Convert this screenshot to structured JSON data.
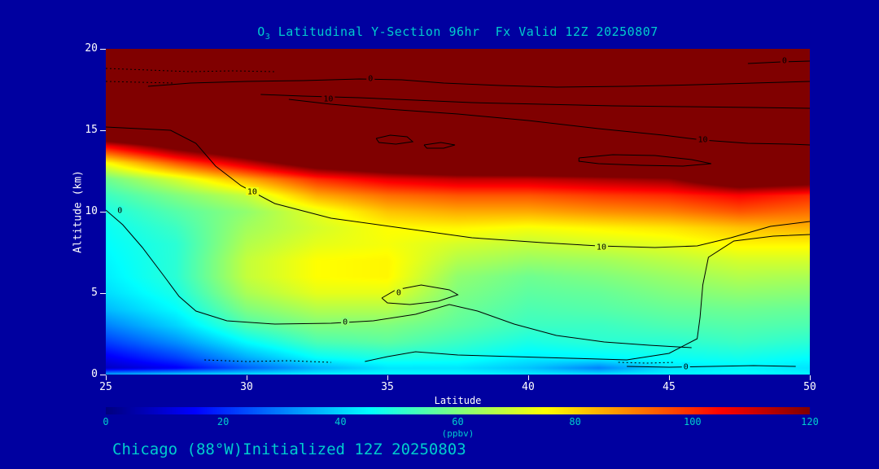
{
  "title": {
    "prefix": "O",
    "sub": "3",
    "rest": " Latitudinal Y-Section 96hr  Fx Valid 12Z 20250807"
  },
  "caption": {
    "text": "Chicago (88°W)Initialized 12Z 20250803"
  },
  "axes": {
    "x": {
      "label": "Latitude",
      "min": 25,
      "max": 50,
      "ticks": [
        25,
        30,
        35,
        40,
        45,
        50
      ]
    },
    "y": {
      "label": "Altitude (km)",
      "min": 0,
      "max": 20,
      "ticks": [
        0,
        5,
        10,
        15,
        20
      ]
    }
  },
  "colorbar": {
    "units": "(ppbv)",
    "min": 0,
    "max": 120,
    "ticks": [
      0,
      20,
      40,
      60,
      80,
      100,
      120
    ],
    "colormap": "jet"
  },
  "colors": {
    "background": "#0000A0",
    "title_text": "#00CDCD",
    "axis_text": "#FFFFFF",
    "caption_text": "#00CDCD",
    "contour_line": "#000000"
  },
  "chart_data": {
    "type": "heatmap",
    "title": "O3 Latitudinal Y-Section 96hr Fx Valid 12Z 20250807",
    "xlabel": "Latitude",
    "ylabel": "Altitude (km)",
    "value_units": "ppbv",
    "xlim": [
      25,
      50
    ],
    "ylim": [
      0,
      20
    ],
    "color_scale": {
      "type": "jet",
      "min": 0,
      "max": 120,
      "over": "dark-red"
    },
    "x_lats": [
      25,
      27.5,
      30,
      32.5,
      35,
      37.5,
      40,
      42.5,
      45,
      47.5,
      50
    ],
    "y_alts": [
      0,
      0.4,
      1,
      2,
      3,
      4,
      5,
      6,
      7,
      8,
      9,
      10,
      11,
      12,
      13,
      14,
      15,
      16,
      20
    ],
    "values_ppbv": [
      [
        36,
        40,
        42,
        44,
        45,
        45,
        43,
        42,
        44,
        46,
        44
      ],
      [
        8,
        14,
        26,
        36,
        42,
        42,
        38,
        30,
        42,
        44,
        42
      ],
      [
        13,
        22,
        35,
        45,
        48,
        47,
        43,
        44,
        46,
        47,
        45
      ],
      [
        22,
        32,
        45,
        54,
        56,
        52,
        48,
        50,
        50,
        52,
        50
      ],
      [
        30,
        40,
        54,
        60,
        60,
        56,
        52,
        52,
        54,
        55,
        54
      ],
      [
        37,
        45,
        60,
        66,
        66,
        58,
        54,
        55,
        57,
        58,
        57
      ],
      [
        41,
        48,
        65,
        72,
        72,
        60,
        56,
        57,
        60,
        62,
        61
      ],
      [
        43,
        50,
        68,
        75,
        76,
        62,
        58,
        60,
        63,
        66,
        65
      ],
      [
        44,
        50,
        68,
        75,
        76,
        66,
        63,
        64,
        67,
        70,
        70
      ],
      [
        45,
        50,
        66,
        72,
        74,
        70,
        68,
        70,
        72,
        76,
        76
      ],
      [
        46,
        52,
        64,
        70,
        75,
        76,
        74,
        76,
        78,
        82,
        84
      ],
      [
        48,
        55,
        62,
        72,
        82,
        85,
        85,
        88,
        90,
        95,
        92
      ],
      [
        52,
        60,
        68,
        85,
        92,
        95,
        95,
        98,
        100,
        105,
        100
      ],
      [
        58,
        70,
        85,
        100,
        108,
        112,
        112,
        115,
        118,
        135,
        130
      ],
      [
        75,
        95,
        112,
        130,
        138,
        145,
        148,
        150,
        155,
        160,
        160
      ],
      [
        105,
        125,
        140,
        160,
        160,
        160,
        160,
        160,
        160,
        160,
        160
      ],
      [
        150,
        160,
        160,
        160,
        160,
        160,
        160,
        160,
        160,
        160,
        160
      ],
      [
        160,
        160,
        160,
        160,
        160,
        160,
        160,
        160,
        160,
        160,
        160
      ],
      [
        160,
        160,
        160,
        160,
        160,
        160,
        160,
        160,
        160,
        160,
        160
      ]
    ],
    "contours": [
      {
        "label": "10",
        "dashed": false,
        "points": [
          [
            25,
            15.2
          ],
          [
            27.3,
            15.0
          ],
          [
            28.2,
            14.2
          ],
          [
            28.9,
            12.8
          ],
          [
            29.8,
            11.6
          ],
          [
            31,
            10.5
          ],
          [
            33,
            9.6
          ],
          [
            35.5,
            9.0
          ],
          [
            38,
            8.4
          ],
          [
            40.5,
            8.1
          ],
          [
            42.5,
            7.9
          ],
          [
            44.5,
            7.8
          ],
          [
            46,
            7.9
          ],
          [
            47.2,
            8.4
          ],
          [
            48.6,
            9.1
          ],
          [
            50,
            9.4
          ]
        ],
        "label_at": [
          [
            30.2,
            11.25
          ],
          [
            42.6,
            7.85
          ]
        ]
      },
      {
        "label": "0",
        "dashed": false,
        "points": [
          [
            25,
            10.1
          ],
          [
            25.6,
            9.2
          ],
          [
            26.3,
            7.8
          ],
          [
            27,
            6.2
          ],
          [
            27.6,
            4.8
          ],
          [
            28.2,
            3.9
          ],
          [
            29.3,
            3.3
          ],
          [
            31,
            3.1
          ],
          [
            33,
            3.15
          ],
          [
            34.5,
            3.3
          ],
          [
            36,
            3.7
          ],
          [
            37.2,
            4.3
          ],
          [
            38.2,
            3.9
          ],
          [
            39.5,
            3.1
          ],
          [
            41,
            2.4
          ],
          [
            42.7,
            2.0
          ],
          [
            44.3,
            1.8
          ],
          [
            45.8,
            1.65
          ]
        ],
        "label_at": [
          [
            25.5,
            10.1
          ],
          [
            33.5,
            3.25
          ]
        ]
      },
      {
        "label": "",
        "dashed": false,
        "points": [
          [
            50,
            8.6
          ],
          [
            48.7,
            8.5
          ],
          [
            47.3,
            8.2
          ],
          [
            46.4,
            7.2
          ],
          [
            46.2,
            5.5
          ],
          [
            46.1,
            3.5
          ],
          [
            46.0,
            2.2
          ],
          [
            45.0,
            1.3
          ],
          [
            43.5,
            0.9
          ],
          [
            41.5,
            1.0
          ],
          [
            39.5,
            1.1
          ],
          [
            37.5,
            1.2
          ],
          [
            36.0,
            1.4
          ],
          [
            35.0,
            1.1
          ],
          [
            34.2,
            0.8
          ]
        ],
        "label_at": []
      },
      {
        "label": "0",
        "dashed": false,
        "points": [
          [
            34.8,
            4.7
          ],
          [
            35.3,
            5.2
          ],
          [
            36.2,
            5.5
          ],
          [
            37.2,
            5.2
          ],
          [
            37.5,
            4.9
          ],
          [
            36.8,
            4.5
          ],
          [
            35.8,
            4.3
          ],
          [
            35.0,
            4.4
          ],
          [
            34.8,
            4.7
          ]
        ],
        "label_at": [
          [
            35.4,
            5.05
          ]
        ]
      },
      {
        "label": "0",
        "dashed": false,
        "points": [
          [
            26.5,
            17.7
          ],
          [
            28,
            17.9
          ],
          [
            30,
            18.0
          ],
          [
            32,
            18.05
          ],
          [
            34,
            18.15
          ],
          [
            35.5,
            18.1
          ],
          [
            37,
            17.9
          ],
          [
            39,
            17.75
          ],
          [
            41,
            17.65
          ],
          [
            43.5,
            17.7
          ],
          [
            46,
            17.8
          ],
          [
            48,
            17.9
          ],
          [
            50,
            18.0
          ]
        ],
        "label_at": [
          [
            34.4,
            18.2
          ]
        ]
      },
      {
        "label": "10",
        "dashed": false,
        "points": [
          [
            31.5,
            16.9
          ],
          [
            33,
            16.6
          ],
          [
            35,
            16.3
          ],
          [
            37.5,
            16.0
          ],
          [
            40,
            15.6
          ],
          [
            42.5,
            15.1
          ],
          [
            44.8,
            14.7
          ],
          [
            46.2,
            14.4
          ],
          [
            47.8,
            14.2
          ],
          [
            49.3,
            14.15
          ],
          [
            50,
            14.1
          ]
        ],
        "label_at": [
          [
            46.2,
            14.45
          ]
        ]
      },
      {
        "label": "10",
        "dashed": false,
        "points": [
          [
            30.5,
            17.2
          ],
          [
            32,
            17.1
          ],
          [
            34,
            17.0
          ],
          [
            36,
            16.85
          ],
          [
            38,
            16.7
          ],
          [
            40.5,
            16.6
          ],
          [
            43,
            16.5
          ],
          [
            45.5,
            16.45
          ],
          [
            48,
            16.4
          ],
          [
            50,
            16.35
          ]
        ],
        "label_at": [
          [
            32.9,
            16.95
          ]
        ]
      },
      {
        "label": "0",
        "dashed": false,
        "points": [
          [
            47.8,
            19.1
          ],
          [
            49,
            19.2
          ],
          [
            50,
            19.25
          ]
        ],
        "label_at": [
          [
            49.1,
            19.3
          ]
        ]
      },
      {
        "label": "0",
        "dashed": false,
        "points": [
          [
            43.5,
            0.5
          ],
          [
            45,
            0.45
          ],
          [
            46.5,
            0.5
          ],
          [
            48,
            0.55
          ],
          [
            49.5,
            0.5
          ]
        ],
        "label_at": [
          [
            45.6,
            0.5
          ]
        ]
      },
      {
        "label": "",
        "dashed": false,
        "points": [
          [
            34.6,
            14.5
          ],
          [
            35.1,
            14.7
          ],
          [
            35.7,
            14.6
          ],
          [
            35.9,
            14.3
          ],
          [
            35.3,
            14.15
          ],
          [
            34.7,
            14.25
          ],
          [
            34.6,
            14.5
          ]
        ],
        "label_at": []
      },
      {
        "label": "",
        "dashed": false,
        "points": [
          [
            36.3,
            14.1
          ],
          [
            36.9,
            14.25
          ],
          [
            37.4,
            14.1
          ],
          [
            37.0,
            13.9
          ],
          [
            36.4,
            13.9
          ],
          [
            36.3,
            14.1
          ]
        ],
        "label_at": []
      },
      {
        "label": "",
        "dashed": false,
        "points": [
          [
            41.8,
            13.3
          ],
          [
            43,
            13.5
          ],
          [
            44.5,
            13.45
          ],
          [
            45.8,
            13.2
          ],
          [
            46.5,
            12.95
          ],
          [
            45.5,
            12.8
          ],
          [
            44,
            12.85
          ],
          [
            42.5,
            12.95
          ],
          [
            41.8,
            13.1
          ],
          [
            41.8,
            13.3
          ]
        ],
        "label_at": []
      },
      {
        "label": "",
        "dashed": true,
        "points": [
          [
            25,
            18.8
          ],
          [
            26.5,
            18.7
          ],
          [
            28,
            18.6
          ],
          [
            29.5,
            18.65
          ],
          [
            31,
            18.6
          ]
        ],
        "label_at": []
      },
      {
        "label": "",
        "dashed": true,
        "points": [
          [
            25,
            18.0
          ],
          [
            26.2,
            17.95
          ],
          [
            27.4,
            17.9
          ]
        ],
        "label_at": []
      },
      {
        "label": "",
        "dashed": true,
        "points": [
          [
            28.5,
            0.9
          ],
          [
            30,
            0.8
          ],
          [
            31.5,
            0.85
          ],
          [
            33,
            0.75
          ]
        ],
        "label_at": []
      },
      {
        "label": "",
        "dashed": true,
        "points": [
          [
            43.2,
            0.75
          ],
          [
            44.2,
            0.7
          ],
          [
            45.2,
            0.75
          ]
        ],
        "label_at": []
      }
    ]
  }
}
